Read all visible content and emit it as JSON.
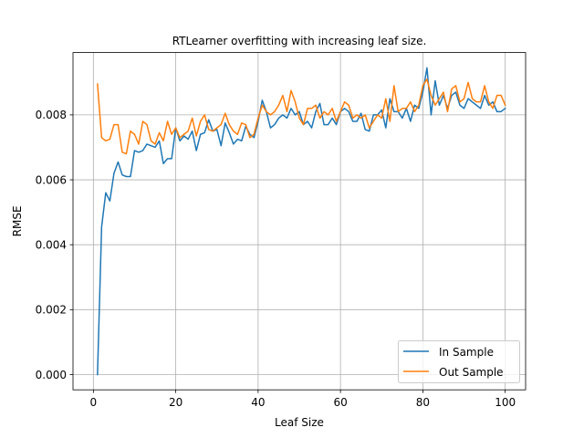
{
  "chart_data": {
    "type": "line",
    "title": "RTLearner overfitting with increasing leaf size.",
    "xlabel": "Leaf Size",
    "ylabel": "RMSE",
    "xlim": [
      -4.95,
      104.95
    ],
    "ylim": [
      -0.00047,
      0.00992
    ],
    "xticks": [
      0,
      20,
      40,
      60,
      80,
      100
    ],
    "xtick_labels": [
      "0",
      "20",
      "40",
      "60",
      "80",
      "100"
    ],
    "yticks": [
      0.0,
      0.002,
      0.004,
      0.006,
      0.008
    ],
    "ytick_labels": [
      "0.000",
      "0.002",
      "0.004",
      "0.006",
      "0.008"
    ],
    "grid": true,
    "legend_position": "lower-right",
    "x": [
      1,
      2,
      3,
      4,
      5,
      6,
      7,
      8,
      9,
      10,
      11,
      12,
      13,
      14,
      15,
      16,
      17,
      18,
      19,
      20,
      21,
      22,
      23,
      24,
      25,
      26,
      27,
      28,
      29,
      30,
      31,
      32,
      33,
      34,
      35,
      36,
      37,
      38,
      39,
      40,
      41,
      42,
      43,
      44,
      45,
      46,
      47,
      48,
      49,
      50,
      51,
      52,
      53,
      54,
      55,
      56,
      57,
      58,
      59,
      60,
      61,
      62,
      63,
      64,
      65,
      66,
      67,
      68,
      69,
      70,
      71,
      72,
      73,
      74,
      75,
      76,
      77,
      78,
      79,
      80,
      81,
      82,
      83,
      84,
      85,
      86,
      87,
      88,
      89,
      90,
      91,
      92,
      93,
      94,
      95,
      96,
      97,
      98,
      99,
      100
    ],
    "series": [
      {
        "name": "In Sample",
        "color": "#1f77b4",
        "values": [
          0.0,
          0.00455,
          0.0056,
          0.00535,
          0.0062,
          0.00655,
          0.00615,
          0.0061,
          0.0061,
          0.0069,
          0.00685,
          0.0069,
          0.0071,
          0.00705,
          0.007,
          0.0072,
          0.0065,
          0.00665,
          0.00665,
          0.0076,
          0.0072,
          0.00735,
          0.00725,
          0.0075,
          0.0069,
          0.0074,
          0.00745,
          0.00785,
          0.0075,
          0.00755,
          0.00705,
          0.00775,
          0.00745,
          0.0071,
          0.00725,
          0.0072,
          0.00765,
          0.0074,
          0.0073,
          0.0078,
          0.00845,
          0.0081,
          0.0076,
          0.0077,
          0.0079,
          0.008,
          0.0079,
          0.0082,
          0.008,
          0.0081,
          0.0077,
          0.0078,
          0.0076,
          0.0081,
          0.00835,
          0.0077,
          0.0077,
          0.0079,
          0.0077,
          0.0081,
          0.0082,
          0.0081,
          0.0078,
          0.0078,
          0.00805,
          0.00755,
          0.0075,
          0.008,
          0.008,
          0.00815,
          0.0076,
          0.0085,
          0.0081,
          0.0081,
          0.0079,
          0.0082,
          0.0078,
          0.0083,
          0.0082,
          0.0087,
          0.00945,
          0.008,
          0.00905,
          0.0083,
          0.0086,
          0.0082,
          0.0086,
          0.0087,
          0.0083,
          0.0082,
          0.0085,
          0.0084,
          0.0083,
          0.0082,
          0.0086,
          0.0083,
          0.0084,
          0.0081,
          0.0081,
          0.0082
        ]
      },
      {
        "name": "Out Sample",
        "color": "#ff7f0e",
        "values": [
          0.00895,
          0.0073,
          0.0072,
          0.00725,
          0.0077,
          0.0077,
          0.00685,
          0.0068,
          0.0075,
          0.0074,
          0.0071,
          0.0078,
          0.0077,
          0.0072,
          0.0071,
          0.00745,
          0.0072,
          0.0078,
          0.0074,
          0.0076,
          0.0073,
          0.0074,
          0.0075,
          0.0079,
          0.00735,
          0.0078,
          0.008,
          0.00755,
          0.0075,
          0.0076,
          0.0077,
          0.00805,
          0.0077,
          0.0075,
          0.0074,
          0.00775,
          0.0077,
          0.0073,
          0.0074,
          0.0079,
          0.0083,
          0.0081,
          0.008,
          0.0081,
          0.0083,
          0.0086,
          0.0081,
          0.00875,
          0.0084,
          0.0079,
          0.0077,
          0.0082,
          0.0082,
          0.0083,
          0.0079,
          0.0081,
          0.008,
          0.0082,
          0.0078,
          0.0081,
          0.0084,
          0.0083,
          0.0079,
          0.008,
          0.0079,
          0.008,
          0.0076,
          0.0078,
          0.008,
          0.0079,
          0.0085,
          0.0078,
          0.0089,
          0.0081,
          0.0082,
          0.0082,
          0.0084,
          0.0081,
          0.0083,
          0.0089,
          0.0091,
          0.0086,
          0.0083,
          0.0085,
          0.0087,
          0.0081,
          0.0088,
          0.0089,
          0.0084,
          0.0085,
          0.009,
          0.0085,
          0.0084,
          0.0084,
          0.0089,
          0.0084,
          0.0082,
          0.0086,
          0.0086,
          0.0083
        ]
      }
    ]
  }
}
